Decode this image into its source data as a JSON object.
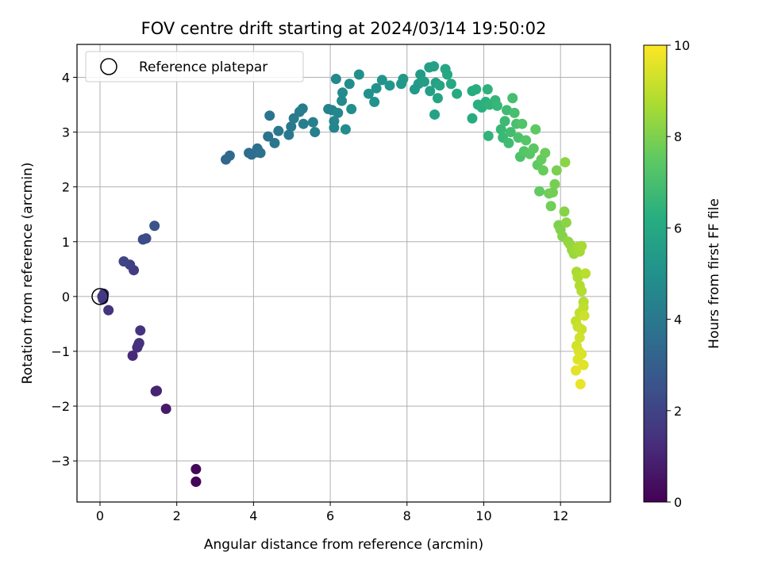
{
  "chart_data": {
    "type": "scatter",
    "title": "FOV centre drift starting at 2024/03/14 19:50:02",
    "xlabel": "Angular distance from reference (arcmin)",
    "ylabel": "Rotation from reference (arcmin)",
    "xlim": [
      -0.6,
      13.3
    ],
    "ylim": [
      -3.75,
      4.6
    ],
    "xticks": [
      0,
      2,
      4,
      6,
      8,
      10,
      12
    ],
    "yticks": [
      -3,
      -2,
      -1,
      0,
      1,
      2,
      3,
      4
    ],
    "grid": true,
    "legend": {
      "placement": "top-left",
      "entries": [
        "Reference platepar"
      ]
    },
    "reference_point": {
      "x": 0,
      "y": 0,
      "label": "Reference platepar"
    },
    "colorbar": {
      "label": "Hours from first FF file",
      "range": [
        0,
        10
      ],
      "ticks": [
        0,
        2,
        4,
        6,
        8,
        10
      ],
      "colormap": "viridis"
    },
    "points": [
      [
        2.5,
        -3.38,
        0.1
      ],
      [
        2.5,
        -3.38,
        0.15
      ],
      [
        2.5,
        -3.15,
        0.2
      ],
      [
        1.72,
        -2.05,
        0.7
      ],
      [
        1.45,
        -1.73,
        0.9
      ],
      [
        1.48,
        -1.72,
        1.0
      ],
      [
        0.85,
        -1.08,
        1.2
      ],
      [
        0.97,
        -0.93,
        1.3
      ],
      [
        1.0,
        -0.88,
        1.35
      ],
      [
        1.02,
        -0.85,
        1.4
      ],
      [
        1.05,
        -0.62,
        1.45
      ],
      [
        0.22,
        -0.25,
        1.5
      ],
      [
        0.08,
        -0.05,
        1.55
      ],
      [
        0.06,
        0.0,
        1.6
      ],
      [
        0.1,
        0.05,
        1.65
      ],
      [
        0.88,
        0.48,
        1.8
      ],
      [
        0.78,
        0.58,
        1.9
      ],
      [
        0.62,
        0.64,
        2.0
      ],
      [
        1.12,
        1.04,
        2.2
      ],
      [
        1.2,
        1.06,
        2.3
      ],
      [
        1.42,
        1.29,
        2.5
      ],
      [
        3.28,
        2.5,
        3.3
      ],
      [
        3.38,
        2.57,
        3.4
      ],
      [
        3.88,
        2.62,
        3.5
      ],
      [
        3.95,
        2.59,
        3.55
      ],
      [
        4.1,
        2.63,
        3.6
      ],
      [
        4.1,
        2.7,
        3.65
      ],
      [
        4.18,
        2.62,
        3.7
      ],
      [
        4.38,
        2.92,
        3.8
      ],
      [
        4.42,
        3.3,
        3.85
      ],
      [
        4.55,
        2.8,
        3.9
      ],
      [
        4.65,
        3.02,
        3.95
      ],
      [
        4.92,
        2.95,
        4.0
      ],
      [
        4.98,
        3.1,
        4.05
      ],
      [
        5.05,
        3.25,
        4.1
      ],
      [
        5.2,
        3.37,
        4.15
      ],
      [
        5.28,
        3.43,
        4.2
      ],
      [
        5.3,
        3.15,
        4.25
      ],
      [
        5.55,
        3.18,
        4.3
      ],
      [
        5.6,
        3.0,
        4.35
      ],
      [
        5.95,
        3.42,
        4.4
      ],
      [
        6.05,
        3.4,
        4.45
      ],
      [
        6.1,
        3.08,
        4.5
      ],
      [
        6.1,
        3.2,
        4.55
      ],
      [
        6.2,
        3.35,
        4.6
      ],
      [
        6.15,
        3.97,
        4.65
      ],
      [
        6.3,
        3.57,
        4.7
      ],
      [
        6.32,
        3.72,
        4.75
      ],
      [
        6.4,
        3.05,
        4.8
      ],
      [
        6.5,
        3.88,
        4.85
      ],
      [
        6.55,
        3.42,
        4.9
      ],
      [
        6.75,
        4.05,
        4.95
      ],
      [
        7.0,
        3.7,
        5.0
      ],
      [
        7.15,
        3.55,
        5.05
      ],
      [
        7.2,
        3.8,
        5.1
      ],
      [
        7.35,
        3.95,
        5.15
      ],
      [
        7.55,
        3.85,
        5.2
      ],
      [
        7.85,
        3.88,
        5.25
      ],
      [
        7.9,
        3.97,
        5.3
      ],
      [
        8.2,
        3.78,
        5.35
      ],
      [
        8.3,
        3.88,
        5.4
      ],
      [
        8.35,
        4.05,
        5.45
      ],
      [
        8.45,
        3.92,
        5.5
      ],
      [
        8.58,
        4.18,
        5.55
      ],
      [
        8.6,
        3.75,
        5.6
      ],
      [
        8.7,
        4.2,
        5.65
      ],
      [
        8.75,
        3.9,
        5.7
      ],
      [
        8.72,
        3.32,
        5.75
      ],
      [
        8.8,
        3.62,
        5.8
      ],
      [
        8.85,
        3.85,
        5.85
      ],
      [
        9.0,
        4.15,
        5.9
      ],
      [
        9.05,
        4.05,
        5.95
      ],
      [
        9.15,
        3.88,
        6.0
      ],
      [
        9.3,
        3.7,
        6.05
      ],
      [
        9.7,
        3.25,
        6.1
      ],
      [
        9.7,
        3.75,
        6.15
      ],
      [
        9.8,
        3.78,
        6.2
      ],
      [
        9.85,
        3.5,
        6.25
      ],
      [
        9.95,
        3.45,
        6.3
      ],
      [
        10.05,
        3.55,
        6.35
      ],
      [
        10.1,
        3.78,
        6.4
      ],
      [
        10.15,
        3.5,
        6.45
      ],
      [
        10.12,
        2.93,
        6.5
      ],
      [
        10.3,
        3.58,
        6.55
      ],
      [
        10.35,
        3.48,
        6.6
      ],
      [
        10.45,
        3.05,
        6.65
      ],
      [
        10.5,
        2.9,
        6.7
      ],
      [
        10.55,
        3.2,
        6.75
      ],
      [
        10.6,
        3.4,
        6.8
      ],
      [
        10.65,
        2.8,
        6.85
      ],
      [
        10.7,
        3.0,
        6.9
      ],
      [
        10.75,
        3.62,
        6.95
      ],
      [
        10.8,
        3.35,
        7.0
      ],
      [
        10.85,
        3.15,
        7.05
      ],
      [
        10.9,
        2.9,
        7.1
      ],
      [
        10.95,
        2.55,
        7.15
      ],
      [
        11.0,
        3.15,
        7.2
      ],
      [
        11.05,
        2.65,
        7.25
      ],
      [
        11.1,
        2.85,
        7.3
      ],
      [
        11.2,
        2.6,
        7.35
      ],
      [
        11.3,
        2.7,
        7.4
      ],
      [
        11.35,
        3.05,
        7.45
      ],
      [
        11.4,
        2.4,
        7.5
      ],
      [
        11.45,
        1.92,
        7.55
      ],
      [
        11.5,
        2.5,
        7.6
      ],
      [
        11.55,
        2.3,
        7.65
      ],
      [
        11.6,
        2.62,
        7.7
      ],
      [
        11.7,
        1.88,
        7.75
      ],
      [
        11.75,
        1.65,
        7.8
      ],
      [
        11.8,
        1.9,
        7.85
      ],
      [
        11.85,
        2.05,
        7.9
      ],
      [
        11.9,
        2.3,
        7.95
      ],
      [
        11.95,
        1.3,
        8.0
      ],
      [
        12.0,
        1.22,
        8.05
      ],
      [
        12.05,
        1.1,
        8.1
      ],
      [
        12.1,
        1.55,
        8.15
      ],
      [
        12.12,
        2.45,
        8.2
      ],
      [
        12.15,
        1.35,
        8.25
      ],
      [
        12.2,
        1.0,
        8.3
      ],
      [
        12.25,
        0.95,
        8.35
      ],
      [
        12.3,
        0.85,
        8.4
      ],
      [
        12.35,
        0.78,
        8.45
      ],
      [
        12.4,
        0.85,
        8.5
      ],
      [
        12.45,
        0.9,
        8.55
      ],
      [
        12.5,
        0.82,
        8.6
      ],
      [
        12.55,
        0.92,
        8.65
      ],
      [
        12.42,
        0.45,
        8.7
      ],
      [
        12.45,
        0.35,
        8.75
      ],
      [
        12.5,
        0.2,
        8.8
      ],
      [
        12.55,
        0.1,
        8.85
      ],
      [
        12.6,
        -0.1,
        8.9
      ],
      [
        12.65,
        0.42,
        8.95
      ],
      [
        12.6,
        -0.2,
        9.0
      ],
      [
        12.5,
        -0.3,
        9.05
      ],
      [
        12.4,
        -0.45,
        9.1
      ],
      [
        12.45,
        -0.55,
        9.15
      ],
      [
        12.55,
        -0.6,
        9.2
      ],
      [
        12.62,
        -0.35,
        9.25
      ],
      [
        12.5,
        -0.75,
        9.3
      ],
      [
        12.42,
        -0.9,
        9.35
      ],
      [
        12.48,
        -1.0,
        9.4
      ],
      [
        12.55,
        -1.05,
        9.45
      ],
      [
        12.45,
        -1.15,
        9.5
      ],
      [
        12.6,
        -1.25,
        9.55
      ],
      [
        12.4,
        -1.35,
        9.6
      ],
      [
        12.52,
        -1.6,
        9.7
      ]
    ]
  }
}
